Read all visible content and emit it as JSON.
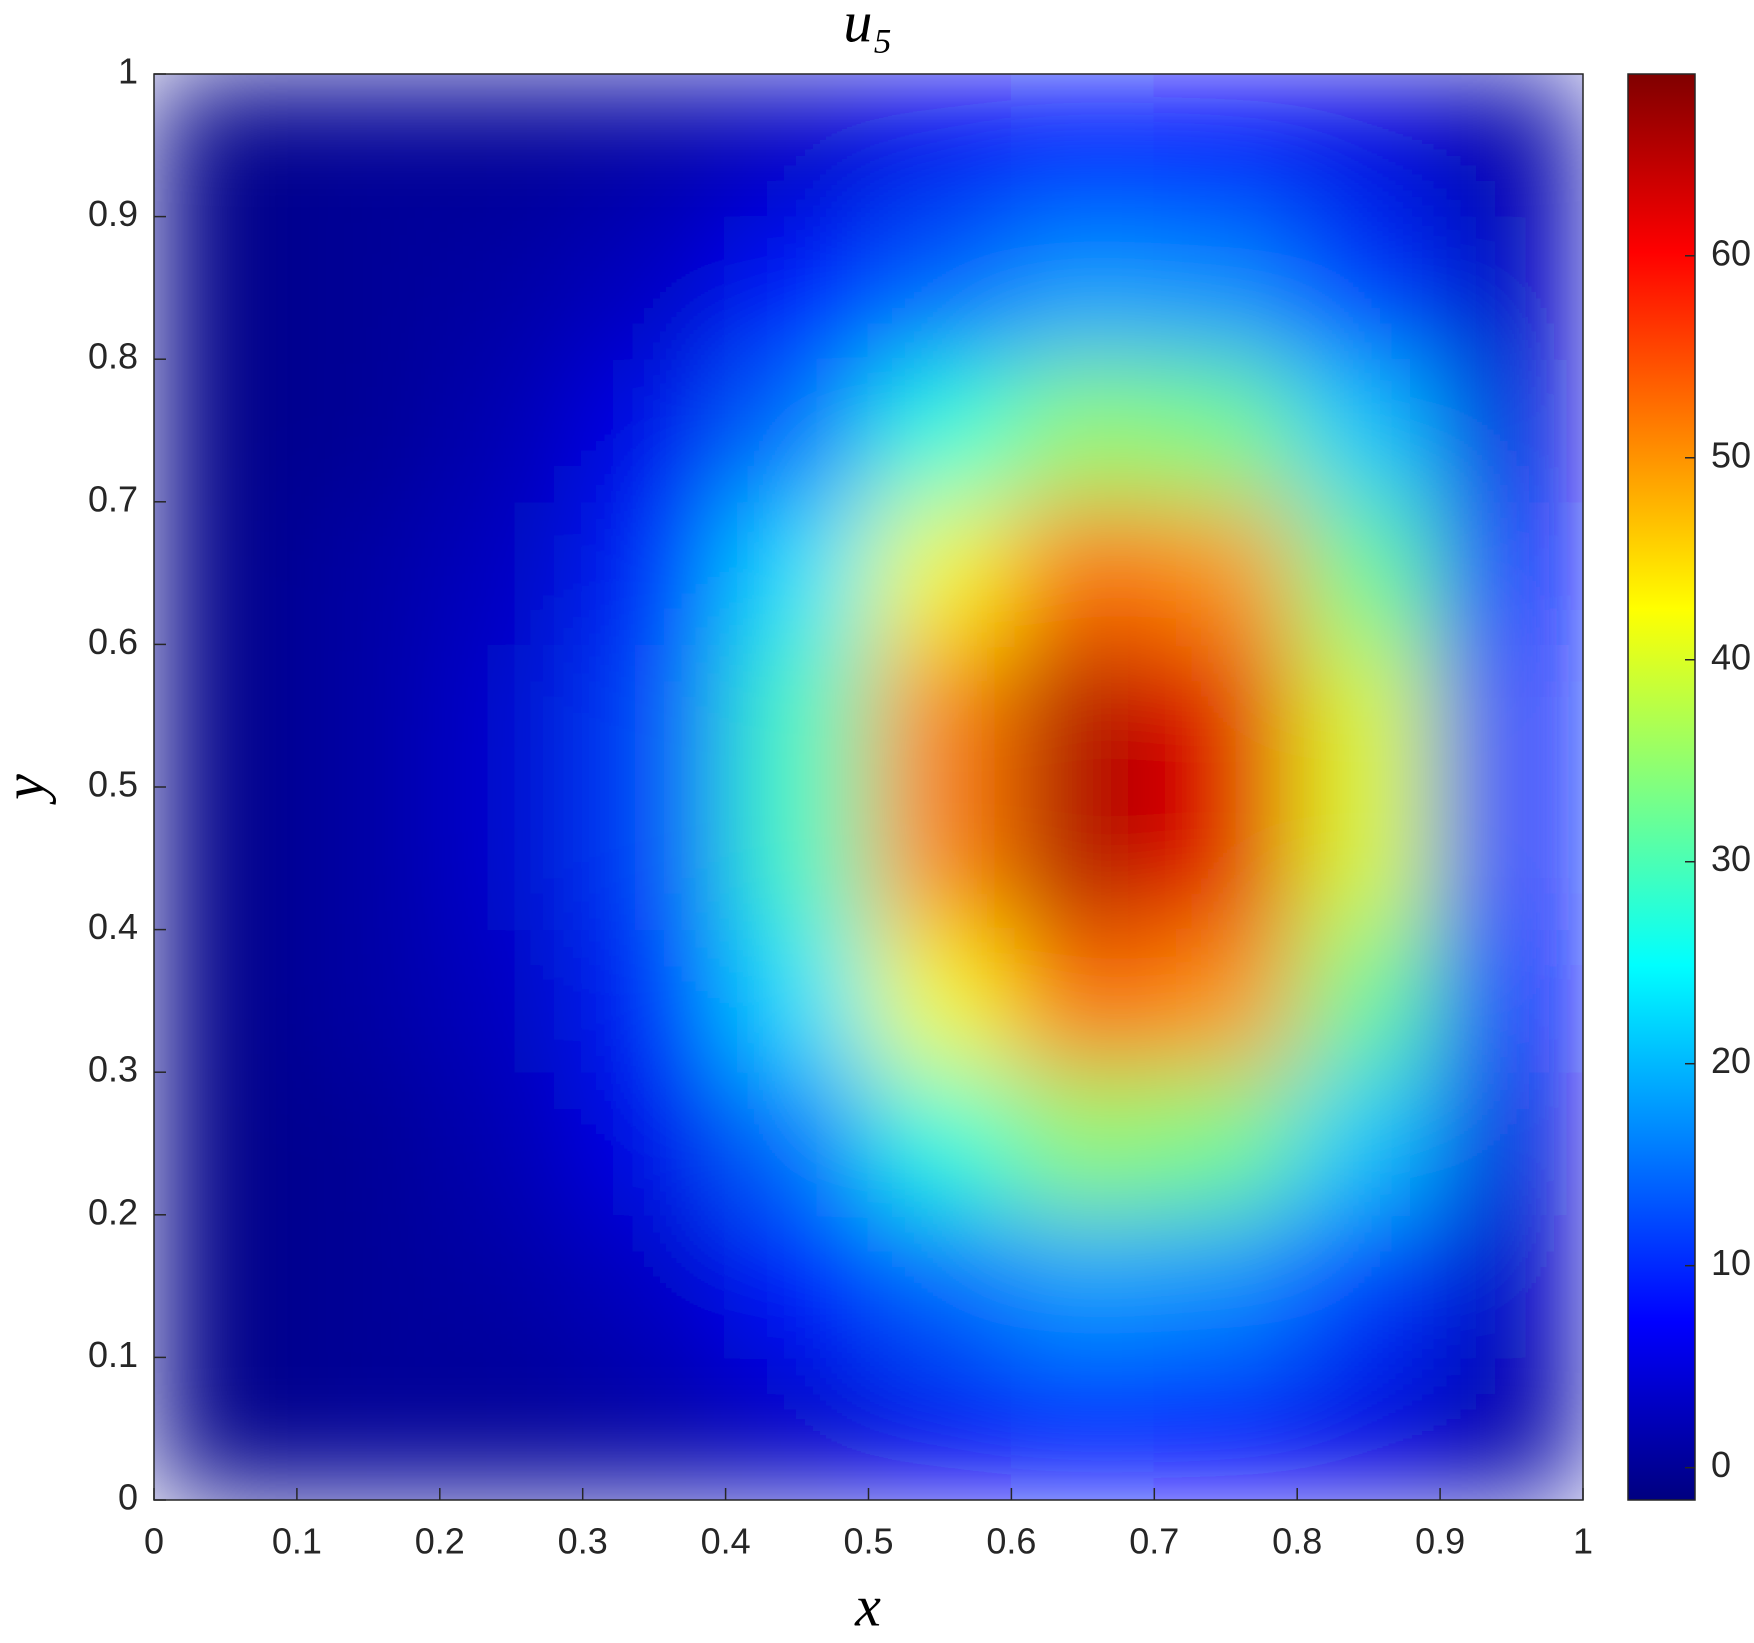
{
  "chart_data": {
    "type": "heatmap",
    "title": "u₅",
    "xlabel": "x",
    "ylabel": "y",
    "x": [
      0.05,
      0.15,
      0.25,
      0.35,
      0.45,
      0.55,
      0.65,
      0.75,
      0.85,
      0.95
    ],
    "y": [
      0.05,
      0.15,
      0.25,
      0.35,
      0.45,
      0.55,
      0.65,
      0.75,
      0.85,
      0.95
    ],
    "z": [
      [
        -1,
        0,
        0,
        1,
        3,
        6,
        8,
        7,
        5,
        1
      ],
      [
        -1,
        0,
        1,
        3,
        8,
        14,
        18,
        17,
        11,
        3
      ],
      [
        -1,
        0,
        2,
        6,
        15,
        27,
        35,
        33,
        21,
        5
      ],
      [
        -1,
        1,
        3,
        10,
        23,
        42,
        53,
        50,
        32,
        8
      ],
      [
        -1,
        1,
        4,
        12,
        29,
        51,
        66,
        62,
        40,
        10
      ],
      [
        -1,
        1,
        4,
        12,
        29,
        51,
        66,
        62,
        40,
        10
      ],
      [
        -1,
        1,
        3,
        10,
        23,
        42,
        53,
        50,
        32,
        8
      ],
      [
        -1,
        0,
        2,
        6,
        15,
        27,
        35,
        33,
        21,
        5
      ],
      [
        -1,
        0,
        1,
        3,
        8,
        14,
        18,
        17,
        11,
        3
      ],
      [
        -1,
        0,
        0,
        1,
        3,
        6,
        8,
        7,
        5,
        1
      ]
    ],
    "colormap": "jet",
    "clim": [
      -1.6,
      69
    ],
    "xlim": [
      0,
      1
    ],
    "ylim": [
      0,
      1
    ],
    "xticks": [
      0,
      0.1,
      0.2,
      0.3,
      0.4,
      0.5,
      0.6,
      0.7,
      0.8,
      0.9,
      1
    ],
    "yticks": [
      0,
      0.1,
      0.2,
      0.3,
      0.4,
      0.5,
      0.6,
      0.7,
      0.8,
      0.9,
      1
    ],
    "cbticks": [
      0,
      10,
      20,
      30,
      40,
      50,
      60
    ]
  }
}
